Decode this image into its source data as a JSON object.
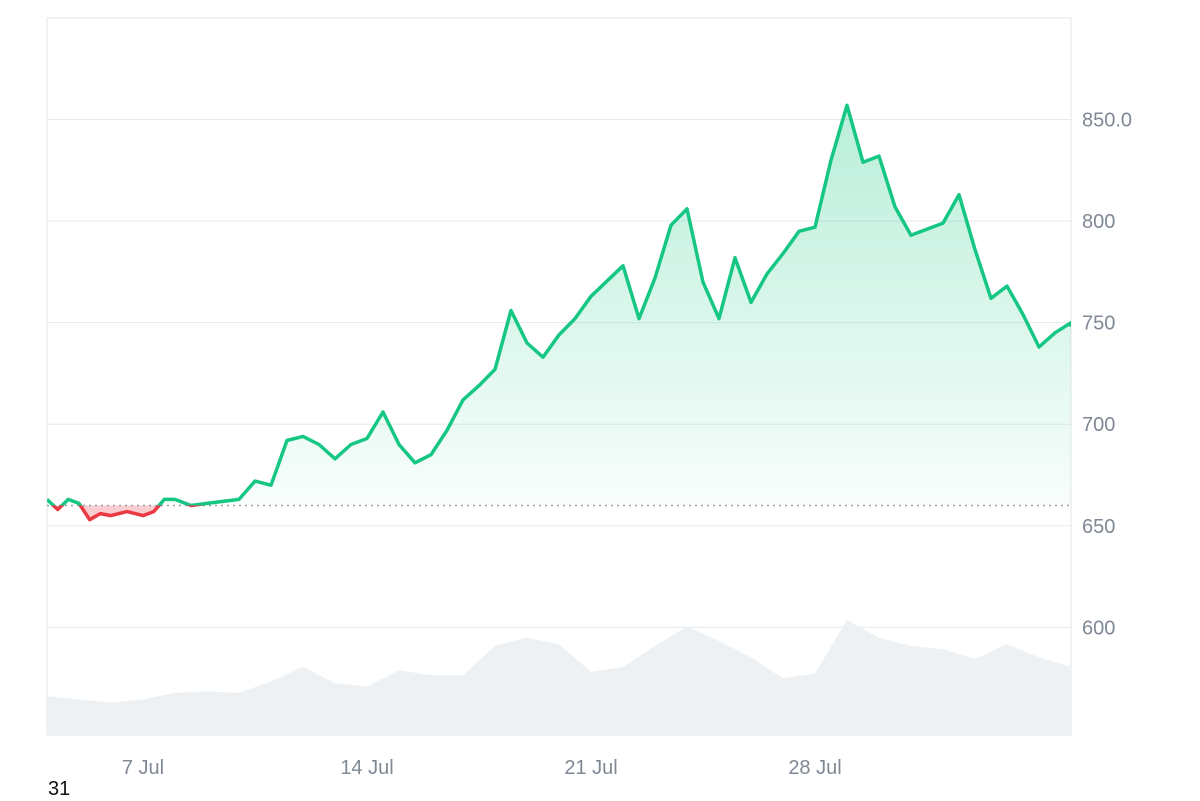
{
  "chart_data": {
    "type": "line",
    "x_unit": "date",
    "x_start": "2025-07-04",
    "x_end": "2025-08-05",
    "baseline": 660,
    "ylim": [
      547,
      900
    ],
    "y_ticks": [
      {
        "value": 850,
        "label": "850.0"
      },
      {
        "value": 800,
        "label": "800"
      },
      {
        "value": 750,
        "label": "750"
      },
      {
        "value": 700,
        "label": "700"
      },
      {
        "value": 650,
        "label": "650"
      },
      {
        "value": 600,
        "label": "600"
      }
    ],
    "x_ticks": [
      {
        "date": "2025-07-07",
        "label": "7 Jul"
      },
      {
        "date": "2025-07-14",
        "label": "14 Jul"
      },
      {
        "date": "2025-07-21",
        "label": "21 Jul"
      },
      {
        "date": "2025-07-28",
        "label": "28 Jul"
      }
    ],
    "series": [
      {
        "kind": "price",
        "points": [
          [
            "2025-07-04",
            663
          ],
          [
            "2025-07-04",
            658
          ],
          [
            "2025-07-04",
            663
          ],
          [
            "2025-07-05",
            661
          ],
          [
            "2025-07-05",
            653
          ],
          [
            "2025-07-05",
            656
          ],
          [
            "2025-07-06",
            655
          ],
          [
            "2025-07-06",
            657
          ],
          [
            "2025-07-07",
            655
          ],
          [
            "2025-07-07",
            657
          ],
          [
            "2025-07-07",
            663
          ],
          [
            "2025-07-08",
            663
          ],
          [
            "2025-07-08",
            660
          ],
          [
            "2025-07-09",
            661
          ],
          [
            "2025-07-09",
            662
          ],
          [
            "2025-07-10",
            663
          ],
          [
            "2025-07-10",
            672
          ],
          [
            "2025-07-11",
            670
          ],
          [
            "2025-07-11",
            692
          ],
          [
            "2025-07-12",
            694
          ],
          [
            "2025-07-12",
            690
          ],
          [
            "2025-07-13",
            683
          ],
          [
            "2025-07-13",
            690
          ],
          [
            "2025-07-14",
            693
          ],
          [
            "2025-07-14",
            706
          ],
          [
            "2025-07-15",
            690
          ],
          [
            "2025-07-15",
            681
          ],
          [
            "2025-07-16",
            685
          ],
          [
            "2025-07-16",
            697
          ],
          [
            "2025-07-17",
            712
          ],
          [
            "2025-07-17",
            719
          ],
          [
            "2025-07-18",
            727
          ],
          [
            "2025-07-18",
            756
          ],
          [
            "2025-07-19",
            740
          ],
          [
            "2025-07-19",
            733
          ],
          [
            "2025-07-20",
            744
          ],
          [
            "2025-07-20",
            752
          ],
          [
            "2025-07-21",
            763
          ],
          [
            "2025-07-22",
            778
          ],
          [
            "2025-07-22",
            752
          ],
          [
            "2025-07-23",
            772
          ],
          [
            "2025-07-23",
            798
          ],
          [
            "2025-07-24",
            806
          ],
          [
            "2025-07-24",
            770
          ],
          [
            "2025-07-25",
            752
          ],
          [
            "2025-07-25",
            782
          ],
          [
            "2025-07-26",
            760
          ],
          [
            "2025-07-26",
            774
          ],
          [
            "2025-07-27",
            784
          ],
          [
            "2025-07-27",
            795
          ],
          [
            "2025-07-28",
            797
          ],
          [
            "2025-07-28",
            830
          ],
          [
            "2025-07-29",
            857
          ],
          [
            "2025-07-29",
            829
          ],
          [
            "2025-07-30",
            832
          ],
          [
            "2025-07-30",
            807
          ],
          [
            "2025-07-31",
            793
          ],
          [
            "2025-08-01",
            799
          ],
          [
            "2025-08-01",
            813
          ],
          [
            "2025-08-02",
            786
          ],
          [
            "2025-08-02",
            762
          ],
          [
            "2025-08-03",
            768
          ],
          [
            "2025-08-03",
            754
          ],
          [
            "2025-08-04",
            738
          ],
          [
            "2025-08-04",
            745
          ],
          [
            "2025-08-05",
            750
          ],
          [
            "2025-08-05",
            748
          ]
        ]
      },
      {
        "kind": "volume",
        "points": [
          [
            "2025-07-04",
            0.24
          ],
          [
            "2025-07-05",
            0.22
          ],
          [
            "2025-07-06",
            0.2
          ],
          [
            "2025-07-07",
            0.22
          ],
          [
            "2025-07-08",
            0.26
          ],
          [
            "2025-07-09",
            0.27
          ],
          [
            "2025-07-10",
            0.26
          ],
          [
            "2025-07-11",
            0.33
          ],
          [
            "2025-07-12",
            0.42
          ],
          [
            "2025-07-13",
            0.32
          ],
          [
            "2025-07-14",
            0.3
          ],
          [
            "2025-07-15",
            0.4
          ],
          [
            "2025-07-16",
            0.37
          ],
          [
            "2025-07-17",
            0.37
          ],
          [
            "2025-07-18",
            0.55
          ],
          [
            "2025-07-19",
            0.6
          ],
          [
            "2025-07-20",
            0.56
          ],
          [
            "2025-07-21",
            0.39
          ],
          [
            "2025-07-22",
            0.42
          ],
          [
            "2025-07-23",
            0.55
          ],
          [
            "2025-07-24",
            0.67
          ],
          [
            "2025-07-25",
            0.58
          ],
          [
            "2025-07-26",
            0.48
          ],
          [
            "2025-07-27",
            0.35
          ],
          [
            "2025-07-28",
            0.38
          ],
          [
            "2025-07-29",
            0.71
          ],
          [
            "2025-07-30",
            0.6
          ],
          [
            "2025-07-31",
            0.55
          ],
          [
            "2025-08-01",
            0.53
          ],
          [
            "2025-08-02",
            0.47
          ],
          [
            "2025-08-03",
            0.56
          ],
          [
            "2025-08-04",
            0.48
          ],
          [
            "2025-08-05",
            0.42
          ]
        ]
      }
    ],
    "colors": {
      "up_line": "#16c784",
      "down_line": "#ea3943",
      "up_fill": "#16c784",
      "down_fill": "#ea3943",
      "volume": "#eef1f4",
      "baseline": "#9aa0a6"
    },
    "grid": true
  },
  "corner_text": "31"
}
